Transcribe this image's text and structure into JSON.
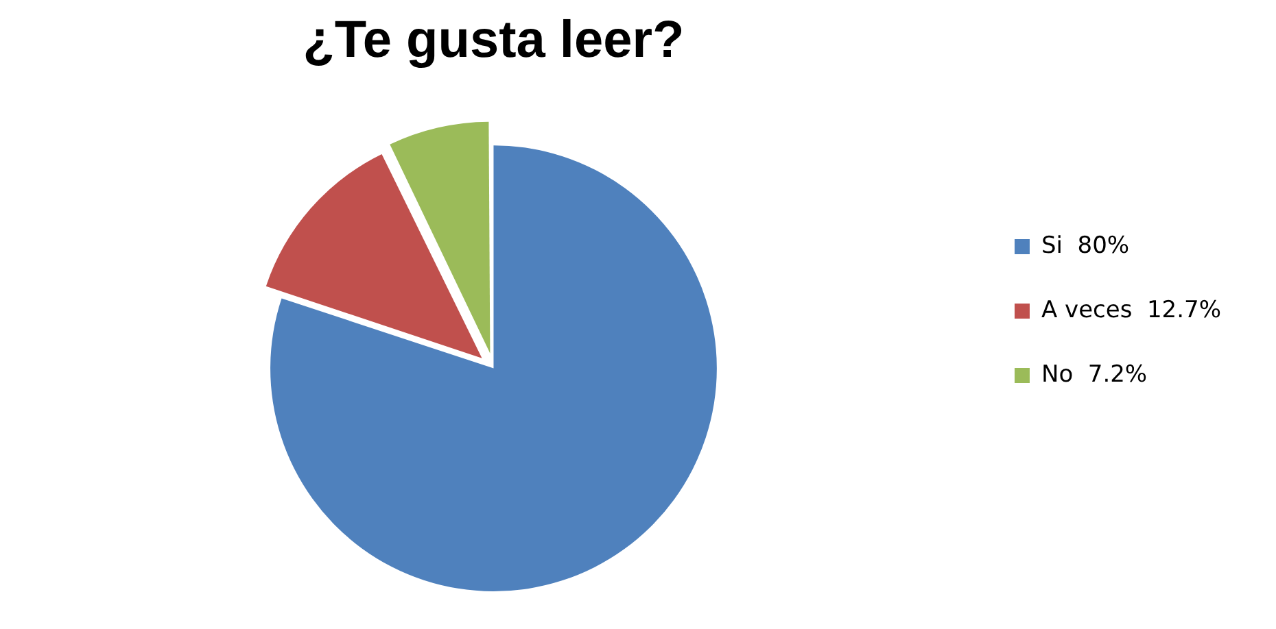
{
  "chart_data": {
    "type": "pie",
    "title": "¿Te gusta leer?",
    "categories": [
      "Si",
      "A veces",
      "No"
    ],
    "values": [
      80,
      12.7,
      7.2
    ],
    "value_labels": [
      "80%",
      "12.7%",
      "7.2%"
    ],
    "colors": [
      "#4f81bd",
      "#c0504d",
      "#9bbb59"
    ],
    "legend": "right"
  }
}
